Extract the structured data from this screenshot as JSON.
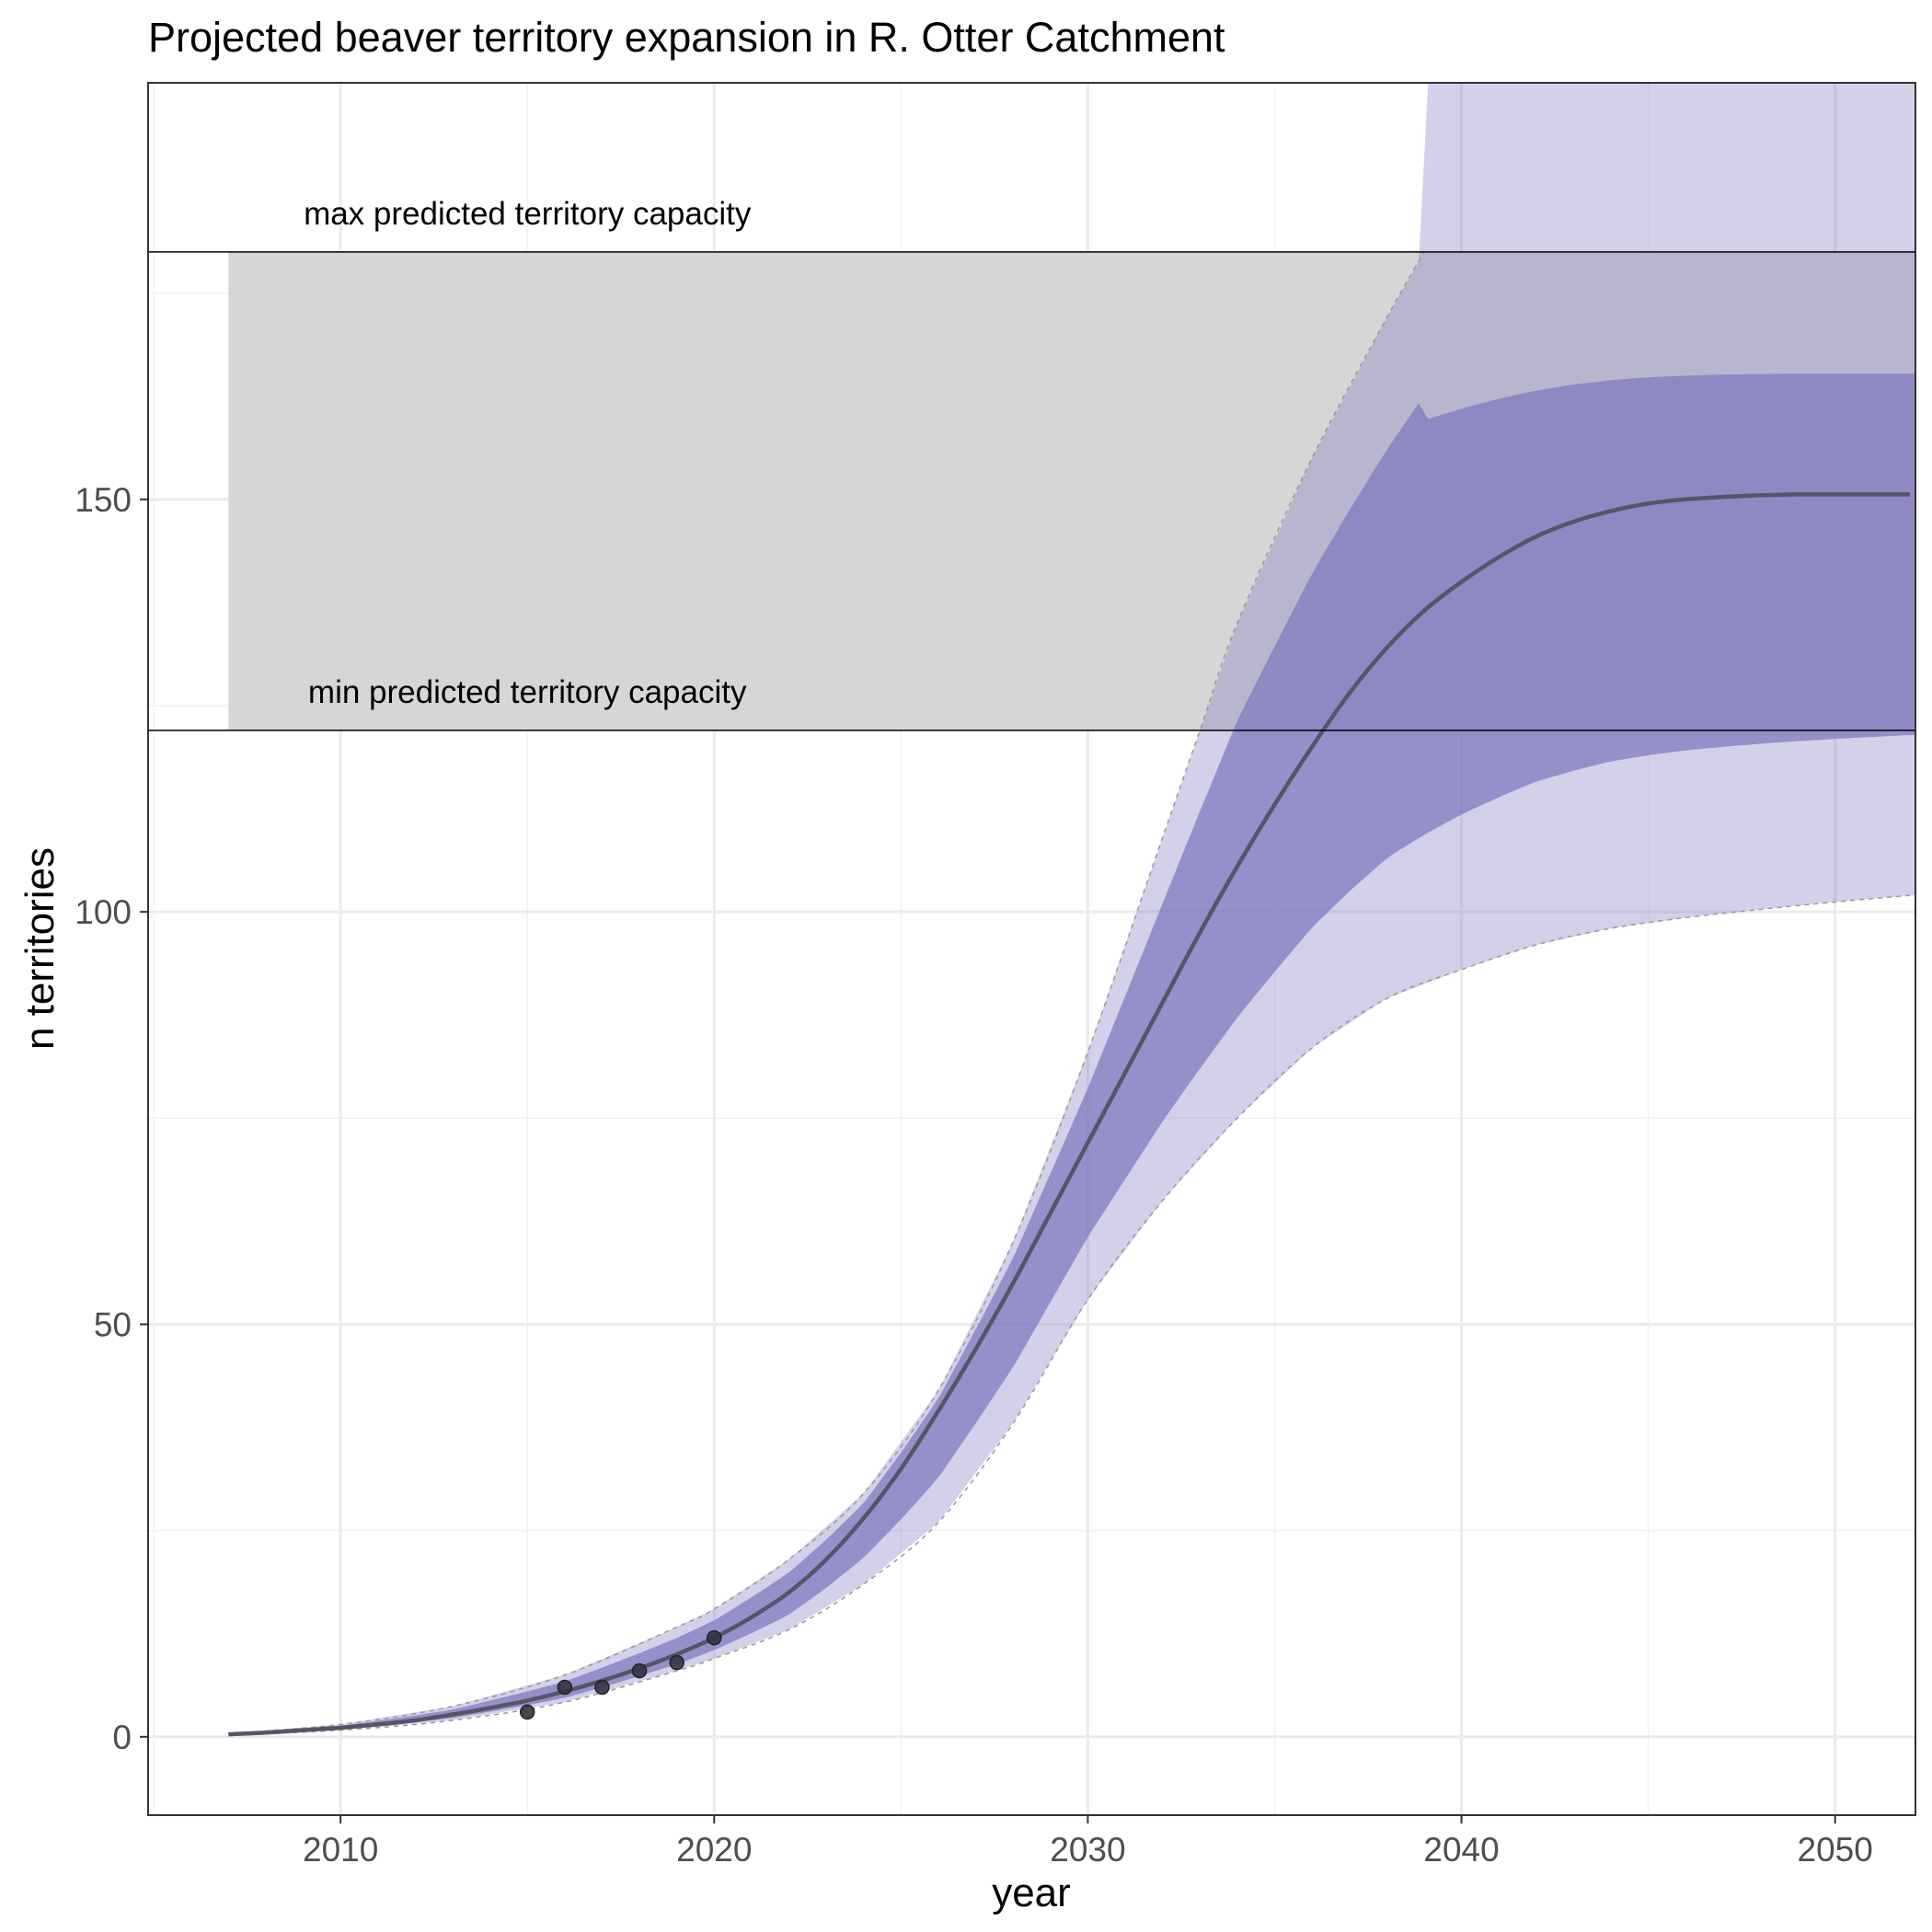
{
  "chart_data": {
    "type": "line",
    "title": "Projected beaver territory expansion in R. Otter Catchment",
    "xlabel": "year",
    "ylabel": "n territories",
    "xlim": [
      2004.85,
      2052.15
    ],
    "ylim": [
      -9.5,
      200.5
    ],
    "x_ticks": [
      2010,
      2020,
      2030,
      2040,
      2050
    ],
    "x_tick_labels": [
      "2010",
      "2020",
      "2030",
      "2040",
      "2050"
    ],
    "y_ticks": [
      0,
      50,
      100,
      150
    ],
    "y_tick_labels": [
      "0",
      "50",
      "100",
      "150"
    ],
    "grid": true,
    "legend": "none",
    "capacity_band": {
      "min": 122,
      "max": 180,
      "x_start": 2007,
      "fill": "#d6d6d6"
    },
    "annotations": [
      {
        "text": "max predicted territory capacity",
        "x": 2015,
        "y": 180
      },
      {
        "text": "min predicted territory capacity",
        "x": 2015,
        "y": 122
      }
    ],
    "series": [
      {
        "role": "median",
        "color": "#555566",
        "x": [
          2007,
          2008,
          2009,
          2010,
          2011,
          2012,
          2013,
          2014,
          2015,
          2016,
          2017,
          2018,
          2019,
          2020,
          2021,
          2022,
          2023,
          2024,
          2025,
          2026,
          2027,
          2028,
          2029,
          2030,
          2031,
          2032,
          2033,
          2034,
          2035,
          2036,
          2037,
          2038,
          2039,
          2040,
          2041,
          2042,
          2043,
          2044,
          2045,
          2046,
          2047,
          2048,
          2049,
          2050,
          2051,
          2052
        ],
        "y": [
          0.3,
          0.5,
          0.8,
          1.1,
          1.5,
          2.0,
          2.7,
          3.5,
          4.4,
          5.5,
          6.8,
          8.3,
          10.0,
          12.0,
          14.5,
          17.5,
          21.5,
          26.5,
          32.5,
          39.5,
          47.0,
          55.0,
          63.5,
          72.0,
          80.5,
          89.0,
          97.5,
          105.5,
          113.0,
          120.0,
          126.5,
          132.0,
          136.5,
          140.0,
          143.0,
          145.5,
          147.3,
          148.6,
          149.5,
          150.0,
          150.3,
          150.5,
          150.6,
          150.6,
          150.6,
          150.6
        ]
      },
      {
        "role": "upper-bound",
        "color": "#999999",
        "x": [
          2007,
          2010,
          2013,
          2016,
          2019,
          2020,
          2022,
          2024,
          2026,
          2028,
          2030,
          2032,
          2033,
          2034,
          2036,
          2038,
          2039
        ],
        "y": [
          0.4,
          1.5,
          3.7,
          7.5,
          13.3,
          15.5,
          21.5,
          29.5,
          42.0,
          60.0,
          83.0,
          109.0,
          122.0,
          135.0,
          155.0,
          172.0,
          180.0
        ]
      },
      {
        "role": "lower-bound",
        "color": "#999999",
        "x": [
          2007,
          2010,
          2013,
          2016,
          2019,
          2020,
          2022,
          2024,
          2026,
          2028,
          2030,
          2032,
          2034,
          2036,
          2038,
          2040,
          2042,
          2044,
          2046,
          2048,
          2050,
          2052
        ],
        "y": [
          0.2,
          0.8,
          2.0,
          4.2,
          8.0,
          9.5,
          13.0,
          18.5,
          26.0,
          38.0,
          53.0,
          65.0,
          75.0,
          83.5,
          89.5,
          93.0,
          96.0,
          98.0,
          99.3,
          100.3,
          101.2,
          102.0
        ]
      }
    ],
    "band_fill_color": "#8079bf",
    "points": {
      "color": "#333344",
      "x": [
        2015,
        2016,
        2017,
        2018,
        2019,
        2020
      ],
      "y": [
        3,
        6,
        6,
        8,
        9,
        12
      ]
    }
  }
}
